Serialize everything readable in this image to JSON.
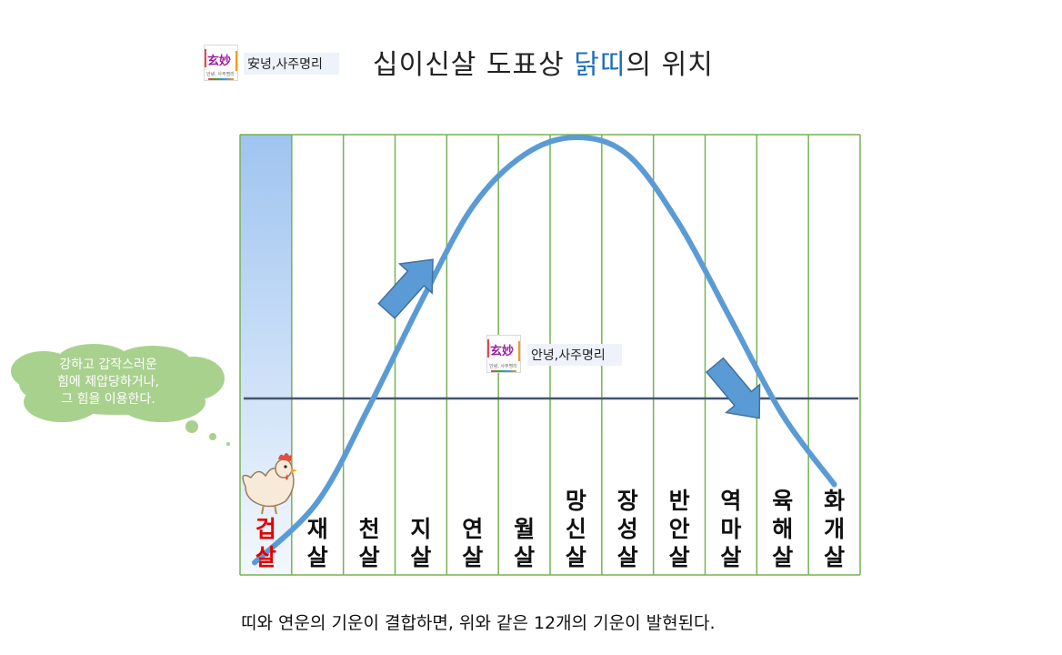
{
  "header": {
    "logo_text": "安녕,사주명리",
    "logo_hanja": "玄妙",
    "logo_mini": "안녕, 사주명리",
    "title_prefix": "십이신살 도표상 ",
    "title_highlight": "닭띠",
    "title_suffix": "의 위치"
  },
  "watermark": {
    "logo_text": "안녕,사주명리",
    "logo_hanja": "玄妙",
    "logo_mini": "안녕, 사주명리"
  },
  "speech_bubble": {
    "text": "강하고 갑작스러운\n힘에 제압당하거나,\n그 힘을 이용한다."
  },
  "chart_data": {
    "type": "diagram",
    "columns": [
      "겁\n살",
      "재\n살",
      "천\n살",
      "지\n살",
      "연\n살",
      "월\n살",
      "망\n신\n살",
      "장\n성\n살",
      "반\n안\n살",
      "역\n마\n살",
      "육\n해\n살",
      "화\n개\n살"
    ],
    "highlighted_column": 0,
    "curve_levels": [
      0.02,
      0.16,
      0.38,
      0.62,
      0.84,
      0.96,
      1.0,
      0.96,
      0.8,
      0.58,
      0.36,
      0.2
    ],
    "colors": {
      "grid": "#77b254",
      "curve": "#5b9bd5",
      "highlight_top": "#9fc4f0",
      "highlight_bottom": "#f3f8fe",
      "midline": "#44546a",
      "label_red": "#e00000",
      "bubble": "#a9d18e",
      "title_highlight": "#1f6fbf"
    }
  },
  "caption": "띠와 연운의 기운이 결합하면, 위와 같은 12개의 기운이 발현된다.",
  "icons": {
    "rooster": "rooster-icon",
    "arrow_up": "arrow-up-icon",
    "arrow_down": "arrow-down-icon"
  }
}
